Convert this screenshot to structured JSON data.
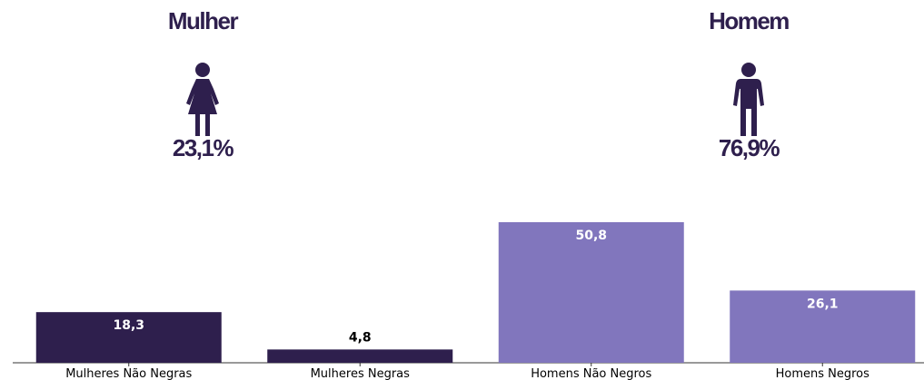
{
  "header": {
    "left": {
      "title": "Mulher",
      "icon": "female-person-icon",
      "percent": "23,1%"
    },
    "right": {
      "title": "Homem",
      "icon": "male-person-icon",
      "percent": "76,9%"
    }
  },
  "colors": {
    "dark": "#2e1f4d",
    "light": "#8176bd",
    "label_on_bar": "#ffffff",
    "label_above": "#000000"
  },
  "chart_data": {
    "type": "bar",
    "categories": [
      "Mulheres Não Negras",
      "Mulheres Negras",
      "Homens Não Negros",
      "Homens Negros"
    ],
    "values": [
      18.3,
      4.8,
      50.8,
      26.1
    ],
    "value_labels": [
      "18,3",
      "4,8",
      "50,8",
      "26,1"
    ],
    "bar_colors": [
      "#2e1f4d",
      "#2e1f4d",
      "#8176bd",
      "#8176bd"
    ],
    "label_inside": [
      true,
      false,
      true,
      true
    ],
    "title": "",
    "xlabel": "",
    "ylabel": "",
    "ylim": [
      0,
      50.8
    ],
    "grid": false
  }
}
